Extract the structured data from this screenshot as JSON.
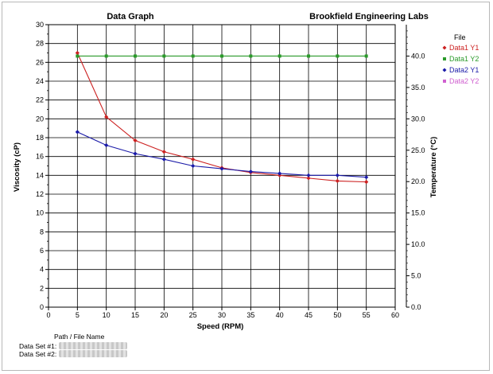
{
  "chart_data": {
    "type": "line",
    "title": "Data Graph",
    "subtitle": "Brookfield Engineering Labs",
    "xlabel": "Speed (RPM)",
    "ylabel_left": "Viscosity (cP)",
    "ylabel_right": "Temperature (°C)",
    "xlim": [
      0,
      60
    ],
    "ylim_left": [
      0,
      30
    ],
    "ylim_right": [
      0,
      45
    ],
    "x_ticks": [
      "0",
      "5",
      "10",
      "15",
      "20",
      "25",
      "30",
      "35",
      "40",
      "45",
      "50",
      "55",
      "60"
    ],
    "y_left_ticks": [
      "0",
      "2",
      "4",
      "6",
      "8",
      "10",
      "12",
      "14",
      "16",
      "18",
      "20",
      "22",
      "24",
      "26",
      "28",
      "30"
    ],
    "y_right_ticks": [
      "0.0",
      "5.0",
      "10.0",
      "15.0",
      "20.0",
      "25.0",
      "30.0",
      "35.0",
      "40.0"
    ],
    "grid": true,
    "legend_title": "File",
    "legend_position": "right",
    "series": [
      {
        "name": "Data1 Y1",
        "axis": "left",
        "color": "#cc2020",
        "x": [
          5,
          10,
          15,
          20,
          25,
          30,
          35,
          40,
          45,
          50,
          55
        ],
        "y": [
          27.0,
          20.2,
          17.7,
          16.5,
          15.7,
          14.8,
          14.3,
          14.0,
          13.7,
          13.4,
          13.3
        ]
      },
      {
        "name": "Data1 Y2",
        "axis": "right",
        "color": "#2a9a2a",
        "x": [
          5,
          10,
          15,
          20,
          25,
          30,
          35,
          40,
          45,
          50,
          55
        ],
        "y": [
          40.0,
          40.0,
          40.0,
          40.0,
          40.0,
          40.0,
          40.0,
          40.0,
          40.0,
          40.0,
          40.0
        ]
      },
      {
        "name": "Data2 Y1",
        "axis": "left",
        "color": "#1a1aa8",
        "x": [
          5,
          10,
          15,
          20,
          25,
          30,
          35,
          40,
          45,
          50,
          55
        ],
        "y": [
          18.6,
          17.2,
          16.3,
          15.7,
          15.0,
          14.7,
          14.4,
          14.2,
          14.0,
          14.0,
          13.8
        ]
      },
      {
        "name": "Data2 Y2",
        "axis": "right",
        "color": "#d060d0",
        "x": [],
        "y": []
      }
    ]
  },
  "footer": {
    "path_header": "Path / File Name",
    "data_set_1": "Data Set #1:",
    "data_set_2": "Data Set #2:"
  }
}
